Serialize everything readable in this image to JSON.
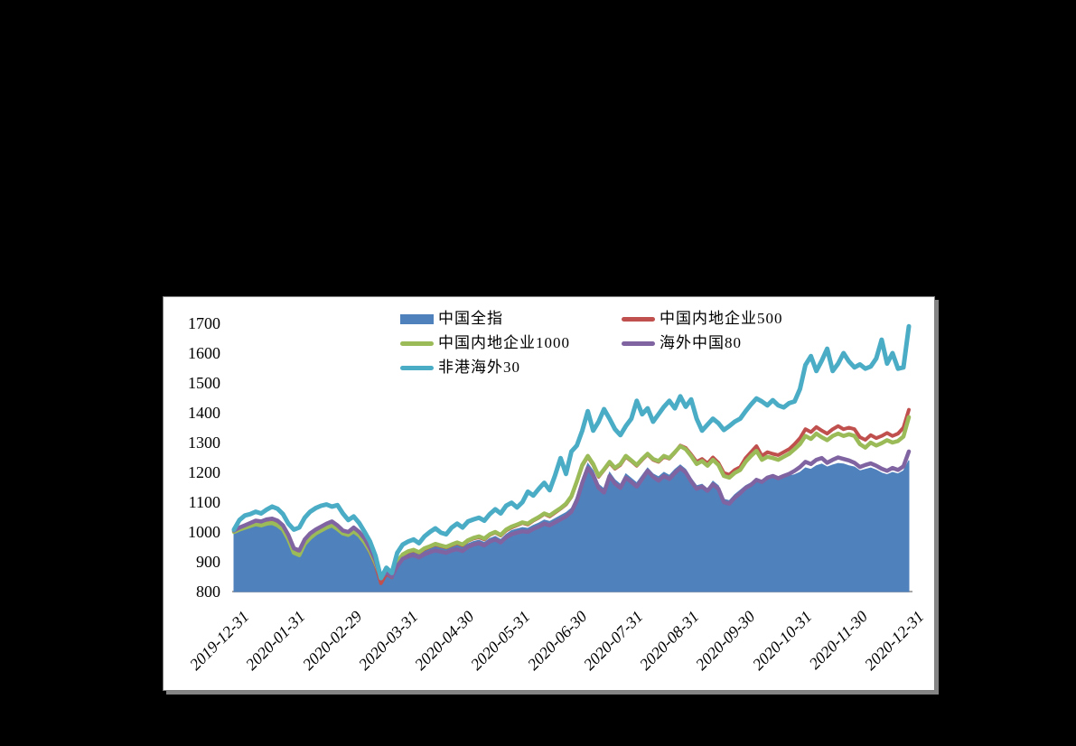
{
  "page": {
    "background_color": "#000000"
  },
  "panel": {
    "background_color": "#ffffff",
    "border_color": "#818181",
    "shadow_color": "#858585",
    "axis_line_color": "#a8a8a8"
  },
  "chart_data": {
    "type": "line",
    "title": "",
    "xlabel": "",
    "ylabel": "",
    "ylim": [
      800,
      1700
    ],
    "grid": false,
    "legend_position": "top-center",
    "y_ticks": [
      1700,
      1600,
      1500,
      1400,
      1300,
      1200,
      1100,
      1000,
      900,
      800
    ],
    "x_tick_labels": [
      "2019-12-31",
      "2020-01-31",
      "2020-02-29",
      "2020-03-31",
      "2020-04-30",
      "2020-05-31",
      "2020-06-30",
      "2020-07-31",
      "2020-08-31",
      "2020-09-30",
      "2020-10-31",
      "2020-11-30",
      "2020-12-31"
    ],
    "series": [
      {
        "name": "中国全指",
        "color": "#4F81BD",
        "style": "area",
        "values": [
          1000,
          1012,
          1018,
          1025,
          1030,
          1028,
          1033,
          1035,
          1028,
          1015,
          985,
          938,
          930,
          965,
          985,
          1000,
          1010,
          1018,
          1025,
          1015,
          1000,
          995,
          1005,
          990,
          970,
          940,
          900,
          838,
          858,
          845,
          890,
          920,
          928,
          932,
          925,
          938,
          945,
          952,
          948,
          942,
          950,
          955,
          948,
          960,
          968,
          972,
          965,
          978,
          985,
          975,
          992,
          1005,
          1010,
          1015,
          1012,
          1022,
          1030,
          1040,
          1035,
          1045,
          1055,
          1065,
          1080,
          1120,
          1180,
          1230,
          1205,
          1160,
          1145,
          1200,
          1175,
          1160,
          1195,
          1180,
          1165,
          1190,
          1215,
          1195,
          1185,
          1200,
          1190,
          1210,
          1225,
          1210,
          1180,
          1155,
          1160,
          1145,
          1170,
          1155,
          1110,
          1105,
          1125,
          1140,
          1155,
          1165,
          1180,
          1170,
          1182,
          1188,
          1178,
          1185,
          1188,
          1192,
          1200,
          1215,
          1210,
          1222,
          1228,
          1218,
          1225,
          1230,
          1228,
          1222,
          1218,
          1205,
          1210,
          1215,
          1208,
          1198,
          1192,
          1200,
          1195,
          1205,
          1240
        ]
      },
      {
        "name": "中国内地企业500",
        "color": "#C0504D",
        "style": "line",
        "values": [
          1002,
          1010,
          1016,
          1022,
          1028,
          1025,
          1030,
          1032,
          1025,
          1010,
          978,
          933,
          925,
          962,
          982,
          998,
          1008,
          1018,
          1025,
          1012,
          998,
          992,
          1005,
          990,
          965,
          932,
          890,
          828,
          860,
          848,
          895,
          922,
          932,
          938,
          930,
          942,
          950,
          958,
          952,
          948,
          955,
          962,
          955,
          970,
          978,
          982,
          975,
          990,
          998,
          988,
          1005,
          1015,
          1022,
          1030,
          1025,
          1038,
          1048,
          1060,
          1052,
          1065,
          1078,
          1092,
          1118,
          1168,
          1222,
          1252,
          1225,
          1185,
          1208,
          1232,
          1212,
          1225,
          1252,
          1238,
          1222,
          1242,
          1260,
          1242,
          1235,
          1252,
          1246,
          1266,
          1290,
          1282,
          1260,
          1235,
          1245,
          1230,
          1250,
          1232,
          1198,
          1192,
          1208,
          1218,
          1248,
          1268,
          1288,
          1255,
          1268,
          1262,
          1258,
          1268,
          1278,
          1295,
          1315,
          1345,
          1335,
          1352,
          1340,
          1330,
          1345,
          1355,
          1345,
          1350,
          1345,
          1318,
          1309,
          1325,
          1315,
          1322,
          1332,
          1322,
          1330,
          1350,
          1410
        ]
      },
      {
        "name": "中国内地企业1000",
        "color": "#9BBB59",
        "style": "line",
        "values": [
          1000,
          1008,
          1014,
          1020,
          1026,
          1022,
          1028,
          1030,
          1022,
          1008,
          975,
          930,
          922,
          960,
          980,
          995,
          1005,
          1015,
          1022,
          1010,
          995,
          990,
          1002,
          988,
          965,
          935,
          895,
          850,
          870,
          858,
          900,
          925,
          935,
          940,
          932,
          945,
          952,
          960,
          955,
          950,
          958,
          965,
          958,
          972,
          980,
          985,
          978,
          992,
          1000,
          990,
          1008,
          1018,
          1025,
          1032,
          1028,
          1040,
          1050,
          1062,
          1055,
          1068,
          1080,
          1095,
          1120,
          1170,
          1225,
          1255,
          1228,
          1188,
          1210,
          1235,
          1215,
          1228,
          1255,
          1240,
          1225,
          1245,
          1262,
          1245,
          1238,
          1255,
          1248,
          1268,
          1288,
          1278,
          1255,
          1228,
          1238,
          1222,
          1242,
          1225,
          1188,
          1182,
          1198,
          1208,
          1235,
          1255,
          1272,
          1242,
          1252,
          1248,
          1242,
          1252,
          1262,
          1278,
          1295,
          1322,
          1312,
          1330,
          1318,
          1308,
          1322,
          1330,
          1322,
          1328,
          1322,
          1295,
          1283,
          1300,
          1290,
          1298,
          1308,
          1300,
          1305,
          1320,
          1385
        ]
      },
      {
        "name": "海外中国80",
        "color": "#8064A2",
        "style": "line",
        "values": [
          1005,
          1015,
          1022,
          1030,
          1038,
          1035,
          1042,
          1045,
          1038,
          1022,
          990,
          945,
          938,
          975,
          995,
          1008,
          1018,
          1028,
          1035,
          1022,
          1005,
          1000,
          1015,
          1000,
          978,
          945,
          905,
          845,
          865,
          850,
          885,
          910,
          918,
          922,
          915,
          925,
          932,
          938,
          934,
          930,
          938,
          942,
          936,
          950,
          958,
          962,
          955,
          968,
          975,
          965,
          982,
          992,
          998,
          1002,
          1000,
          1010,
          1018,
          1028,
          1022,
          1032,
          1042,
          1052,
          1068,
          1105,
          1165,
          1215,
          1190,
          1148,
          1132,
          1188,
          1162,
          1148,
          1182,
          1168,
          1152,
          1178,
          1205,
          1185,
          1172,
          1188,
          1178,
          1198,
          1215,
          1200,
          1170,
          1145,
          1152,
          1138,
          1160,
          1145,
          1100,
          1095,
          1115,
          1130,
          1148,
          1158,
          1175,
          1168,
          1182,
          1188,
          1180,
          1188,
          1195,
          1205,
          1218,
          1235,
          1228,
          1242,
          1248,
          1232,
          1242,
          1250,
          1245,
          1240,
          1232,
          1218,
          1225,
          1230,
          1222,
          1212,
          1205,
          1215,
          1208,
          1220,
          1270
        ]
      },
      {
        "name": "非港海外30",
        "color": "#4BACC6",
        "style": "line",
        "values": [
          1008,
          1040,
          1055,
          1060,
          1068,
          1062,
          1075,
          1085,
          1078,
          1060,
          1028,
          1008,
          1015,
          1048,
          1068,
          1080,
          1088,
          1092,
          1085,
          1090,
          1062,
          1040,
          1052,
          1030,
          1000,
          968,
          920,
          845,
          880,
          862,
          930,
          958,
          968,
          975,
          962,
          985,
          1000,
          1012,
          998,
          992,
          1015,
          1028,
          1015,
          1035,
          1042,
          1048,
          1038,
          1060,
          1076,
          1062,
          1088,
          1098,
          1082,
          1100,
          1135,
          1122,
          1145,
          1165,
          1140,
          1190,
          1248,
          1195,
          1270,
          1290,
          1340,
          1405,
          1340,
          1370,
          1412,
          1380,
          1345,
          1325,
          1355,
          1380,
          1440,
          1395,
          1415,
          1370,
          1395,
          1420,
          1440,
          1415,
          1455,
          1420,
          1445,
          1380,
          1340,
          1360,
          1380,
          1365,
          1342,
          1355,
          1370,
          1380,
          1405,
          1428,
          1448,
          1438,
          1425,
          1442,
          1425,
          1418,
          1432,
          1438,
          1480,
          1560,
          1590,
          1540,
          1575,
          1615,
          1540,
          1565,
          1600,
          1572,
          1552,
          1562,
          1548,
          1555,
          1582,
          1645,
          1565,
          1600,
          1548,
          1552,
          1690
        ]
      }
    ]
  }
}
